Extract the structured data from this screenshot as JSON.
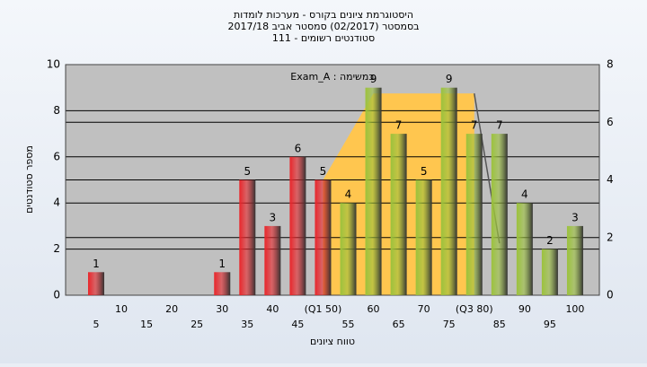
{
  "chart_data": {
    "type": "bar",
    "title": "היסטוגרמת ציונים בקורס - מערכות לומדות",
    "subtitle": "בסמסטר  (02/2017)  סמסטר אביב 2017/18",
    "subtitle2": "סטודנטים רשומים - 111",
    "annotation": "Exam_A : במשימה",
    "ylabel": "מספר סטודנטים",
    "xlabel": "טווח ציונים",
    "categories": [
      "5",
      "10",
      "15",
      "20",
      "25",
      "30",
      "35",
      "40",
      "45",
      "(Q1 50)",
      "55",
      "60",
      "65",
      "70",
      "75",
      "(Q3 80)",
      "85",
      "90",
      "95",
      "100"
    ],
    "values": [
      1,
      0,
      0,
      0,
      0,
      1,
      5,
      3,
      6,
      5,
      4,
      9,
      7,
      5,
      9,
      7,
      7,
      4,
      2,
      3
    ],
    "colors": [
      "#e8262b",
      "#e8262b",
      "#e8262b",
      "#e8262b",
      "#e8262b",
      "#e8262b",
      "#e8262b",
      "#e8262b",
      "#e8262b",
      "#e8262b",
      "#9cc23c",
      "#9cc23c",
      "#9cc23c",
      "#9cc23c",
      "#9cc23c",
      "#9cc23c",
      "#9cc23c",
      "#9cc23c",
      "#9cc23c",
      "#9cc23c"
    ],
    "band": {
      "x": [
        50,
        60,
        80
      ],
      "values": [
        4,
        7,
        7
      ],
      "axis": "y2",
      "color": "#ffc64f"
    },
    "drop_line": {
      "x": [
        80,
        85
      ],
      "values": [
        7,
        1.8
      ],
      "axis": "y2",
      "color": "#555555"
    },
    "ylim": [
      0,
      10
    ],
    "yticks": [
      0,
      2,
      4,
      6,
      8,
      10
    ],
    "y2lim": [
      0,
      8
    ],
    "y2ticks": [
      0,
      2,
      4,
      6,
      8
    ],
    "grid": true
  }
}
